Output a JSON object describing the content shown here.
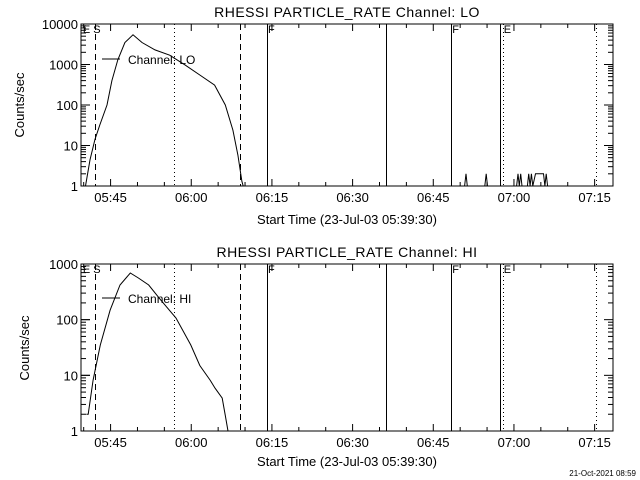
{
  "timestamp": "21-Oct-2021 08:59",
  "chart_data": [
    {
      "type": "line",
      "title": "RHESSI PARTICLE_RATE Channel: LO",
      "xlabel": "Start Time (23-Jul-03 05:39:30)",
      "ylabel": "Counts/sec",
      "ylog": true,
      "ylim": [
        1,
        10000
      ],
      "xlim": [
        "05:39:30",
        "07:18:25"
      ],
      "xticks": [
        "05:45",
        "06:00",
        "06:15",
        "06:30",
        "06:45",
        "07:00",
        "07:15"
      ],
      "yticks": [
        "1",
        "10",
        "100",
        "1000",
        "10000"
      ],
      "legend": "Channel: LO",
      "flags": [
        {
          "label": "E S",
          "time": "05:39:40"
        },
        {
          "label": "F",
          "time": "06:14:05"
        },
        {
          "label": "F",
          "time": "06:48:20"
        },
        {
          "label": "E",
          "time": "06:57:55"
        }
      ],
      "vlines": [
        {
          "time": "05:42:06",
          "style": "dashed"
        },
        {
          "time": "05:56:50",
          "style": "dotted"
        },
        {
          "time": "06:09:05",
          "style": "dashed"
        },
        {
          "time": "06:14:05",
          "style": "solid"
        },
        {
          "time": "06:36:10",
          "style": "solid"
        },
        {
          "time": "06:48:20",
          "style": "solid"
        },
        {
          "time": "06:57:25",
          "style": "solid"
        },
        {
          "time": "06:57:55",
          "style": "dotted"
        },
        {
          "time": "07:15:15",
          "style": "dotted"
        }
      ],
      "series": [
        {
          "name": "Channel: LO",
          "points": [
            [
              "05:40:20",
              1
            ],
            [
              "05:41:10",
              4.4
            ],
            [
              "05:42:05",
              14
            ],
            [
              "05:43:00",
              32
            ],
            [
              "05:44:20",
              100
            ],
            [
              "05:45:15",
              400
            ],
            [
              "05:46:20",
              1300
            ],
            [
              "05:47:40",
              3500
            ],
            [
              "05:49:10",
              5400
            ],
            [
              "05:50:50",
              3500
            ],
            [
              "05:53:15",
              2300
            ],
            [
              "05:56:00",
              1700
            ],
            [
              "05:58:50",
              980
            ],
            [
              "06:01:35",
              550
            ],
            [
              "06:04:20",
              310
            ],
            [
              "06:06:20",
              100
            ],
            [
              "06:07:45",
              24
            ],
            [
              "06:08:40",
              5.8
            ],
            [
              "06:09:25",
              1.3
            ],
            [
              "06:09:40",
              1
            ]
          ]
        },
        {
          "name": "Channel: LO spikes",
          "points": [
            [
              "06:50:50",
              1
            ],
            [
              "06:51:05",
              2
            ],
            [
              "06:51:20",
              1
            ],
            [
              "06:54:35",
              1
            ],
            [
              "06:54:50",
              2
            ],
            [
              "06:55:05",
              1
            ],
            [
              "07:00:30",
              1
            ],
            [
              "07:00:45",
              2
            ],
            [
              "07:01:00",
              1
            ],
            [
              "07:01:15",
              2
            ],
            [
              "07:01:30",
              1
            ],
            [
              "07:02:30",
              1
            ],
            [
              "07:02:45",
              2
            ],
            [
              "07:03:00",
              1
            ],
            [
              "07:03:15",
              2
            ],
            [
              "07:03:30",
              1
            ],
            [
              "07:04:00",
              2
            ],
            [
              "07:05:30",
              2
            ],
            [
              "07:05:45",
              1
            ],
            [
              "07:06:00",
              2
            ],
            [
              "07:06:15",
              1
            ]
          ]
        }
      ]
    },
    {
      "type": "line",
      "title": "RHESSI PARTICLE_RATE Channel: HI",
      "xlabel": "Start Time (23-Jul-03 05:39:30)",
      "ylabel": "Counts/sec",
      "ylog": true,
      "ylim": [
        1,
        1000
      ],
      "xlim": [
        "05:39:30",
        "07:18:25"
      ],
      "xticks": [
        "05:45",
        "06:00",
        "06:15",
        "06:30",
        "06:45",
        "07:00",
        "07:15"
      ],
      "yticks": [
        "1",
        "10",
        "100",
        "1000"
      ],
      "legend": "Channel: HI",
      "flags": [
        {
          "label": "E S",
          "time": "05:39:40"
        },
        {
          "label": "F",
          "time": "06:14:05"
        },
        {
          "label": "F",
          "time": "06:48:20"
        },
        {
          "label": "E",
          "time": "06:57:55"
        }
      ],
      "vlines": [
        {
          "time": "05:42:06",
          "style": "dashed"
        },
        {
          "time": "05:56:50",
          "style": "dotted"
        },
        {
          "time": "06:09:05",
          "style": "dashed"
        },
        {
          "time": "06:14:05",
          "style": "solid"
        },
        {
          "time": "06:36:10",
          "style": "solid"
        },
        {
          "time": "06:48:20",
          "style": "solid"
        },
        {
          "time": "06:57:25",
          "style": "solid"
        },
        {
          "time": "06:57:55",
          "style": "dotted"
        },
        {
          "time": "07:15:15",
          "style": "dotted"
        }
      ],
      "series": [
        {
          "name": "Channel: HI",
          "points": [
            [
              "05:40:30",
              2
            ],
            [
              "05:40:50",
              2
            ],
            [
              "05:41:45",
              8.2
            ],
            [
              "05:43:05",
              35
            ],
            [
              "05:44:55",
              148
            ],
            [
              "05:46:45",
              420
            ],
            [
              "05:48:40",
              690
            ],
            [
              "05:50:10",
              560
            ],
            [
              "05:52:05",
              420
            ],
            [
              "05:54:20",
              225
            ],
            [
              "05:57:10",
              107
            ],
            [
              "05:59:55",
              35
            ],
            [
              "06:01:35",
              15
            ],
            [
              "06:03:30",
              8.2
            ],
            [
              "06:04:25",
              5.9
            ],
            [
              "06:05:45",
              3.9
            ],
            [
              "06:06:20",
              1.9
            ],
            [
              "06:06:50",
              1
            ]
          ]
        }
      ]
    }
  ]
}
